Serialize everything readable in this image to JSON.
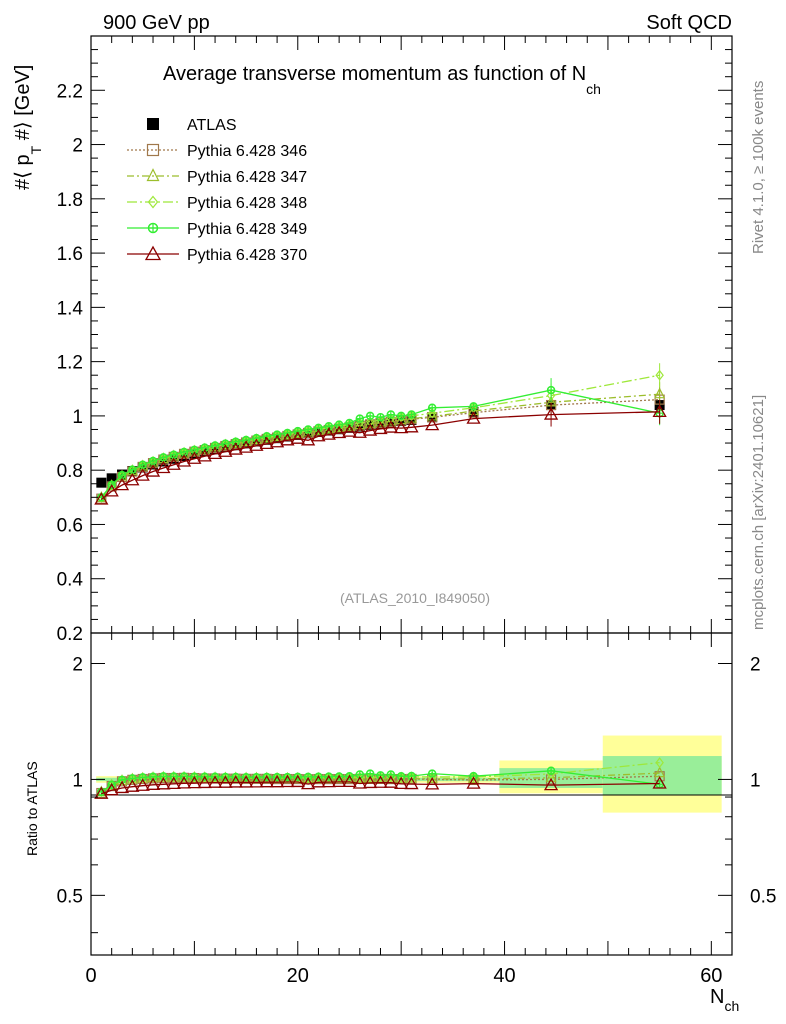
{
  "header": {
    "left": "900 GeV pp",
    "right": "Soft QCD"
  },
  "side": {
    "top": "Rivet 4.1.0, ≥ 100k events",
    "bottom": "mcplots.cern.ch [arXiv:2401.10621]"
  },
  "chart_data": [
    {
      "type": "line",
      "title": "Average transverse momentum as function of N",
      "title_subscript": "ch",
      "ylabel": "#⟨ p_T #⟩ [GeV]",
      "ylabel_main": "#⟨ p",
      "ylabel_sub": "T",
      "ylabel_tail": " #⟩ [GeV]",
      "xlabel": "N",
      "xlabel_sub": "ch",
      "xlim": [
        0,
        62
      ],
      "ylim": [
        0.2,
        2.4
      ],
      "yticks": [
        "0.2",
        "0.4",
        "0.6",
        "0.8",
        "1",
        "1.2",
        "1.4",
        "1.6",
        "1.8",
        "2",
        "2.2"
      ],
      "xticks": [
        "0",
        "20",
        "40",
        "60"
      ],
      "watermark": "(ATLAS_2010_I849050)",
      "x": [
        1,
        2,
        3,
        4,
        5,
        6,
        7,
        8,
        9,
        10,
        11,
        12,
        13,
        14,
        15,
        16,
        17,
        18,
        19,
        20,
        21,
        22,
        23,
        24,
        25,
        26,
        27,
        28,
        29,
        30,
        31,
        33,
        37,
        44.5,
        55
      ],
      "reference": {
        "name": "ATLAS",
        "values": [
          0.754,
          0.77,
          0.784,
          0.797,
          0.81,
          0.821,
          0.832,
          0.842,
          0.852,
          0.861,
          0.869,
          0.877,
          0.885,
          0.892,
          0.899,
          0.906,
          0.912,
          0.918,
          0.924,
          0.93,
          0.936,
          0.941,
          0.946,
          0.951,
          0.956,
          0.961,
          0.966,
          0.971,
          0.976,
          0.981,
          0.985,
          0.995,
          1.015,
          1.04,
          1.04
        ]
      },
      "series": [
        {
          "name": "Pythia 6.428 346",
          "color": "#a0784b",
          "marker": "square",
          "dash": "dotted",
          "values": [
            0.695,
            0.74,
            0.775,
            0.795,
            0.812,
            0.826,
            0.839,
            0.849,
            0.86,
            0.868,
            0.874,
            0.882,
            0.889,
            0.896,
            0.902,
            0.909,
            0.915,
            0.92,
            0.926,
            0.932,
            0.937,
            0.943,
            0.948,
            0.953,
            0.958,
            0.964,
            0.969,
            0.974,
            0.978,
            0.983,
            0.988,
            0.995,
            1.012,
            1.04,
            1.06
          ]
        },
        {
          "name": "Pythia 6.428 347",
          "color": "#9cbe2c",
          "marker": "triangle",
          "dash": "dashdot",
          "values": [
            0.698,
            0.742,
            0.777,
            0.797,
            0.814,
            0.828,
            0.841,
            0.851,
            0.861,
            0.869,
            0.876,
            0.884,
            0.891,
            0.898,
            0.904,
            0.911,
            0.917,
            0.922,
            0.928,
            0.934,
            0.939,
            0.945,
            0.95,
            0.955,
            0.96,
            0.966,
            0.971,
            0.976,
            0.98,
            0.985,
            0.99,
            0.998,
            1.018,
            1.05,
            1.08
          ]
        },
        {
          "name": "Pythia 6.428 348",
          "color": "#9ee83a",
          "marker": "diamond",
          "dash": "dashdot2",
          "values": [
            0.7,
            0.745,
            0.78,
            0.8,
            0.818,
            0.832,
            0.845,
            0.855,
            0.865,
            0.873,
            0.88,
            0.888,
            0.895,
            0.902,
            0.908,
            0.915,
            0.921,
            0.927,
            0.933,
            0.939,
            0.945,
            0.951,
            0.956,
            0.962,
            0.968,
            0.974,
            0.979,
            0.984,
            0.99,
            0.995,
            1.0,
            1.01,
            1.03,
            1.075,
            1.15
          ]
        },
        {
          "name": "Pythia 6.428 349",
          "color": "#33ee33",
          "marker": "circle-cross",
          "dash": "solid",
          "values": [
            0.7,
            0.746,
            0.782,
            0.802,
            0.82,
            0.834,
            0.847,
            0.857,
            0.867,
            0.875,
            0.883,
            0.891,
            0.898,
            0.905,
            0.911,
            0.918,
            0.925,
            0.931,
            0.937,
            0.944,
            0.95,
            0.956,
            0.962,
            0.968,
            0.974,
            0.99,
            1.0,
            0.995,
            1.005,
            1.0,
            1.005,
            1.03,
            1.035,
            1.095,
            1.01
          ]
        },
        {
          "name": "Pythia 6.428 370",
          "color": "#8b0000",
          "marker": "triangle-open",
          "dash": "solid",
          "values": [
            0.692,
            0.722,
            0.745,
            0.763,
            0.78,
            0.795,
            0.808,
            0.82,
            0.832,
            0.842,
            0.851,
            0.86,
            0.868,
            0.876,
            0.883,
            0.89,
            0.897,
            0.903,
            0.91,
            0.916,
            0.91,
            0.925,
            0.931,
            0.937,
            0.942,
            0.938,
            0.946,
            0.952,
            0.957,
            0.955,
            0.958,
            0.966,
            0.99,
            1.005,
            1.015
          ]
        }
      ]
    },
    {
      "type": "line",
      "title": "",
      "ylabel": "Ratio to ATLAS",
      "ylim": [
        0.35,
        2.4
      ],
      "yscale": "log",
      "yticks": [
        "0.5",
        "1",
        "2"
      ],
      "xticks": [
        "0",
        "20",
        "40",
        "60"
      ],
      "bands": [
        {
          "x0": 0.5,
          "x1": 39.5,
          "lo": 0.98,
          "hi": 1.02,
          "inner_lo": 0.99,
          "inner_hi": 1.01
        },
        {
          "x0": 39.5,
          "x1": 49.5,
          "lo": 0.92,
          "hi": 1.12,
          "inner_lo": 0.95,
          "inner_hi": 1.07
        },
        {
          "x0": 49.5,
          "x1": 61,
          "lo": 0.82,
          "hi": 1.3,
          "inner_lo": 0.91,
          "inner_hi": 1.15
        }
      ]
    }
  ]
}
